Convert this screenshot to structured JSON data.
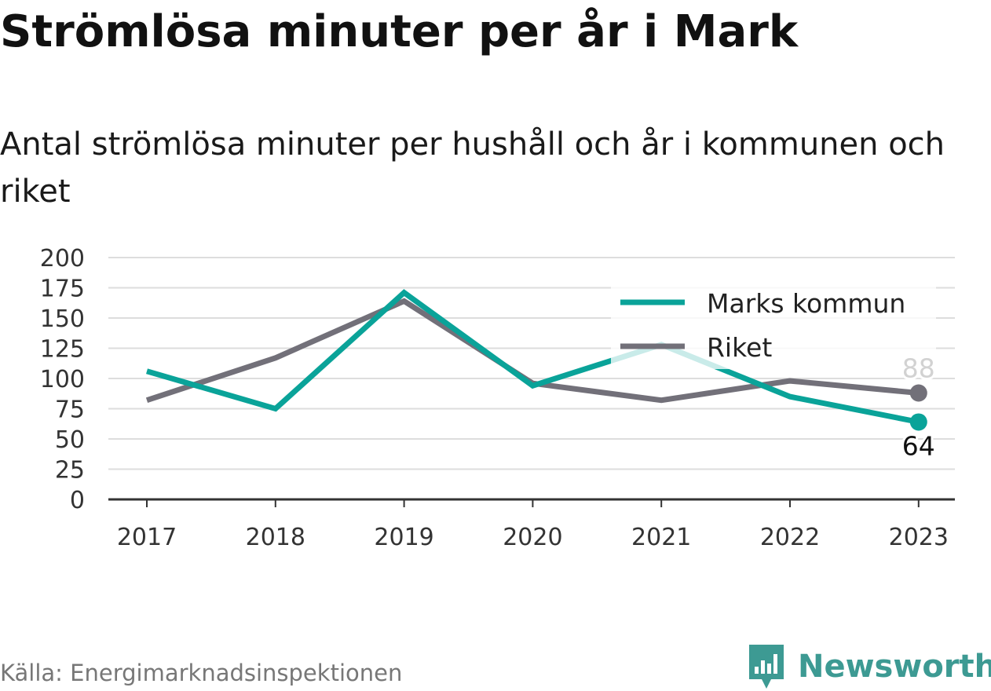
{
  "title": "Strömlösa minuter per år i Mark",
  "subtitle": "Antal strömlösa minuter per hushåll och år i kommunen och riket",
  "source": "Källa: Energimarknadsinspektionen",
  "logo": {
    "text": "Newsworthy",
    "icon": "newsworthy-logo-icon"
  },
  "colors": {
    "marks": "#0aa399",
    "riket": "#727079",
    "grid": "#dddddd",
    "axis": "#333333",
    "text": "#333333"
  },
  "chart_data": {
    "type": "line",
    "x": [
      "2017",
      "2018",
      "2019",
      "2020",
      "2021",
      "2022",
      "2023"
    ],
    "ylim": [
      0,
      200
    ],
    "yticks": [
      0,
      25,
      50,
      75,
      100,
      125,
      150,
      175,
      200
    ],
    "grid": true,
    "legend_position": "top-right",
    "series": [
      {
        "name": "Marks kommun",
        "color": "#0aa399",
        "values": [
          106,
          75,
          171,
          94,
          128,
          85,
          64
        ],
        "end_label": "64"
      },
      {
        "name": "Riket",
        "color": "#727079",
        "values": [
          82,
          117,
          164,
          96,
          82,
          98,
          88
        ],
        "end_label": "88"
      }
    ]
  }
}
